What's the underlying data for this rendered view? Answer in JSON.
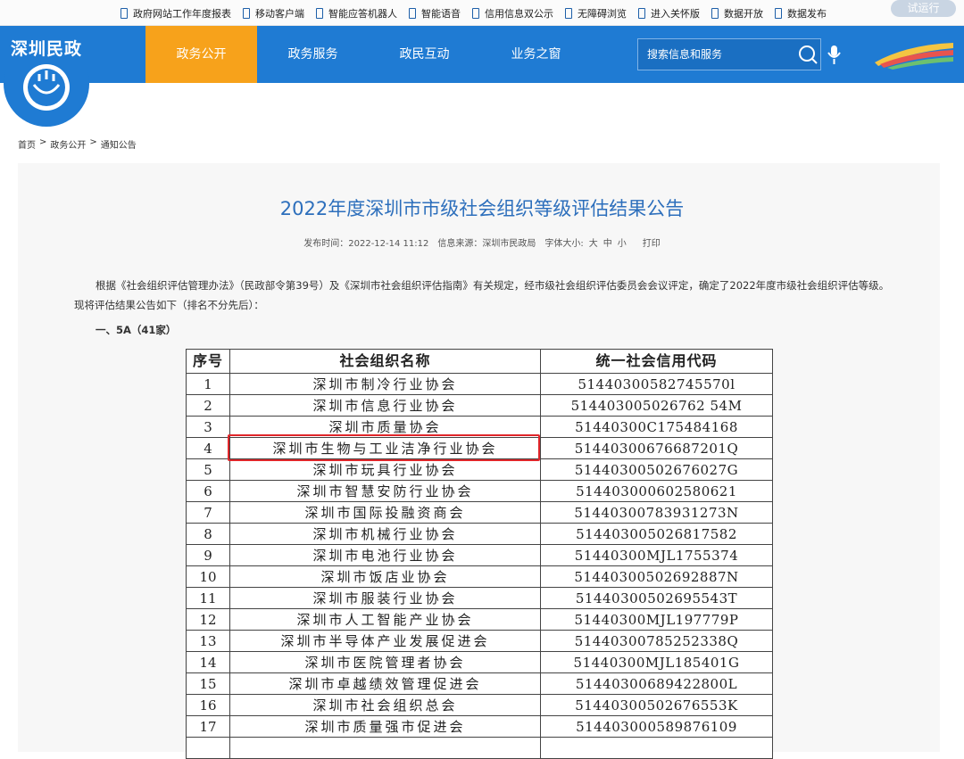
{
  "top_links": [
    "政府网站工作年度报表",
    "移动客户端",
    "智能应答机器人",
    "智能语音",
    "信用信息双公示",
    "无障碍浏览",
    "进入关怀版",
    "数据开放",
    "数据发布"
  ],
  "trial_button": "试运行",
  "logo": "深圳民政",
  "nav": {
    "items": [
      "政务公开",
      "政务服务",
      "政民互动",
      "业务之窗"
    ]
  },
  "search": {
    "placeholder": "搜索信息和服务"
  },
  "breadcrumb": {
    "items": [
      "首页",
      "政务公开",
      "通知公告"
    ],
    "separator": ">"
  },
  "article": {
    "title": "2022年度深圳市市级社会组织等级评估结果公告",
    "meta": {
      "published": "发布时间：2022-12-14 11:12",
      "source": "信息来源：深圳市民政局",
      "font_size": "字体大小:",
      "sizes": [
        "大",
        "中",
        "小"
      ],
      "print": "打印"
    },
    "paragraph": "根据《社会组织评估管理办法》（民政部令第39号）及《深圳市社会组织评估指南》有关规定，经市级社会组织评估委员会会议评定，确定了2022年度市级社会组织评估等级。现将评估结果公告如下（排名不分先后）：",
    "section": "一、5A（41家）"
  },
  "table": {
    "header": [
      "序号",
      "社会组织名称",
      "统一社会信用代码"
    ],
    "rows": [
      [
        "1",
        "深圳市制冷行业协会",
        "51440300582745570l"
      ],
      [
        "2",
        "深圳市信息行业协会",
        "514403005026762 54M"
      ],
      [
        "3",
        "深圳市质量协会",
        "51440300C175484168"
      ],
      [
        "4",
        "深圳市生物与工业洁净行业协会",
        "51440300676687201Q"
      ],
      [
        "5",
        "深圳市玩具行业协会",
        "51440300502676027G"
      ],
      [
        "6",
        "深圳市智慧安防行业协会",
        "514403000602580621"
      ],
      [
        "7",
        "深圳市国际投融资商会",
        "51440300783931273N"
      ],
      [
        "8",
        "深圳市机械行业协会",
        "514403005026817582"
      ],
      [
        "9",
        "深圳市电池行业协会",
        "51440300MJL1755374"
      ],
      [
        "10",
        "深圳市饭店业协会",
        "51440300502692887N"
      ],
      [
        "11",
        "深圳市服装行业协会",
        "51440300502695543T"
      ],
      [
        "12",
        "深圳市人工智能产业协会",
        "51440300MJL197779P"
      ],
      [
        "13",
        "深圳市半导体产业发展促进会",
        "51440300785252338Q"
      ],
      [
        "14",
        "深圳市医院管理者协会",
        "51440300MJL185401G"
      ],
      [
        "15",
        "深圳市卓越绩效管理促进会",
        "51440300689422800L"
      ],
      [
        "16",
        "深圳市社会组织总会",
        "51440300502676553K"
      ],
      [
        "17",
        "深圳市质量强市促进会",
        "514403000589876109"
      ]
    ],
    "highlighted_row": 3
  }
}
